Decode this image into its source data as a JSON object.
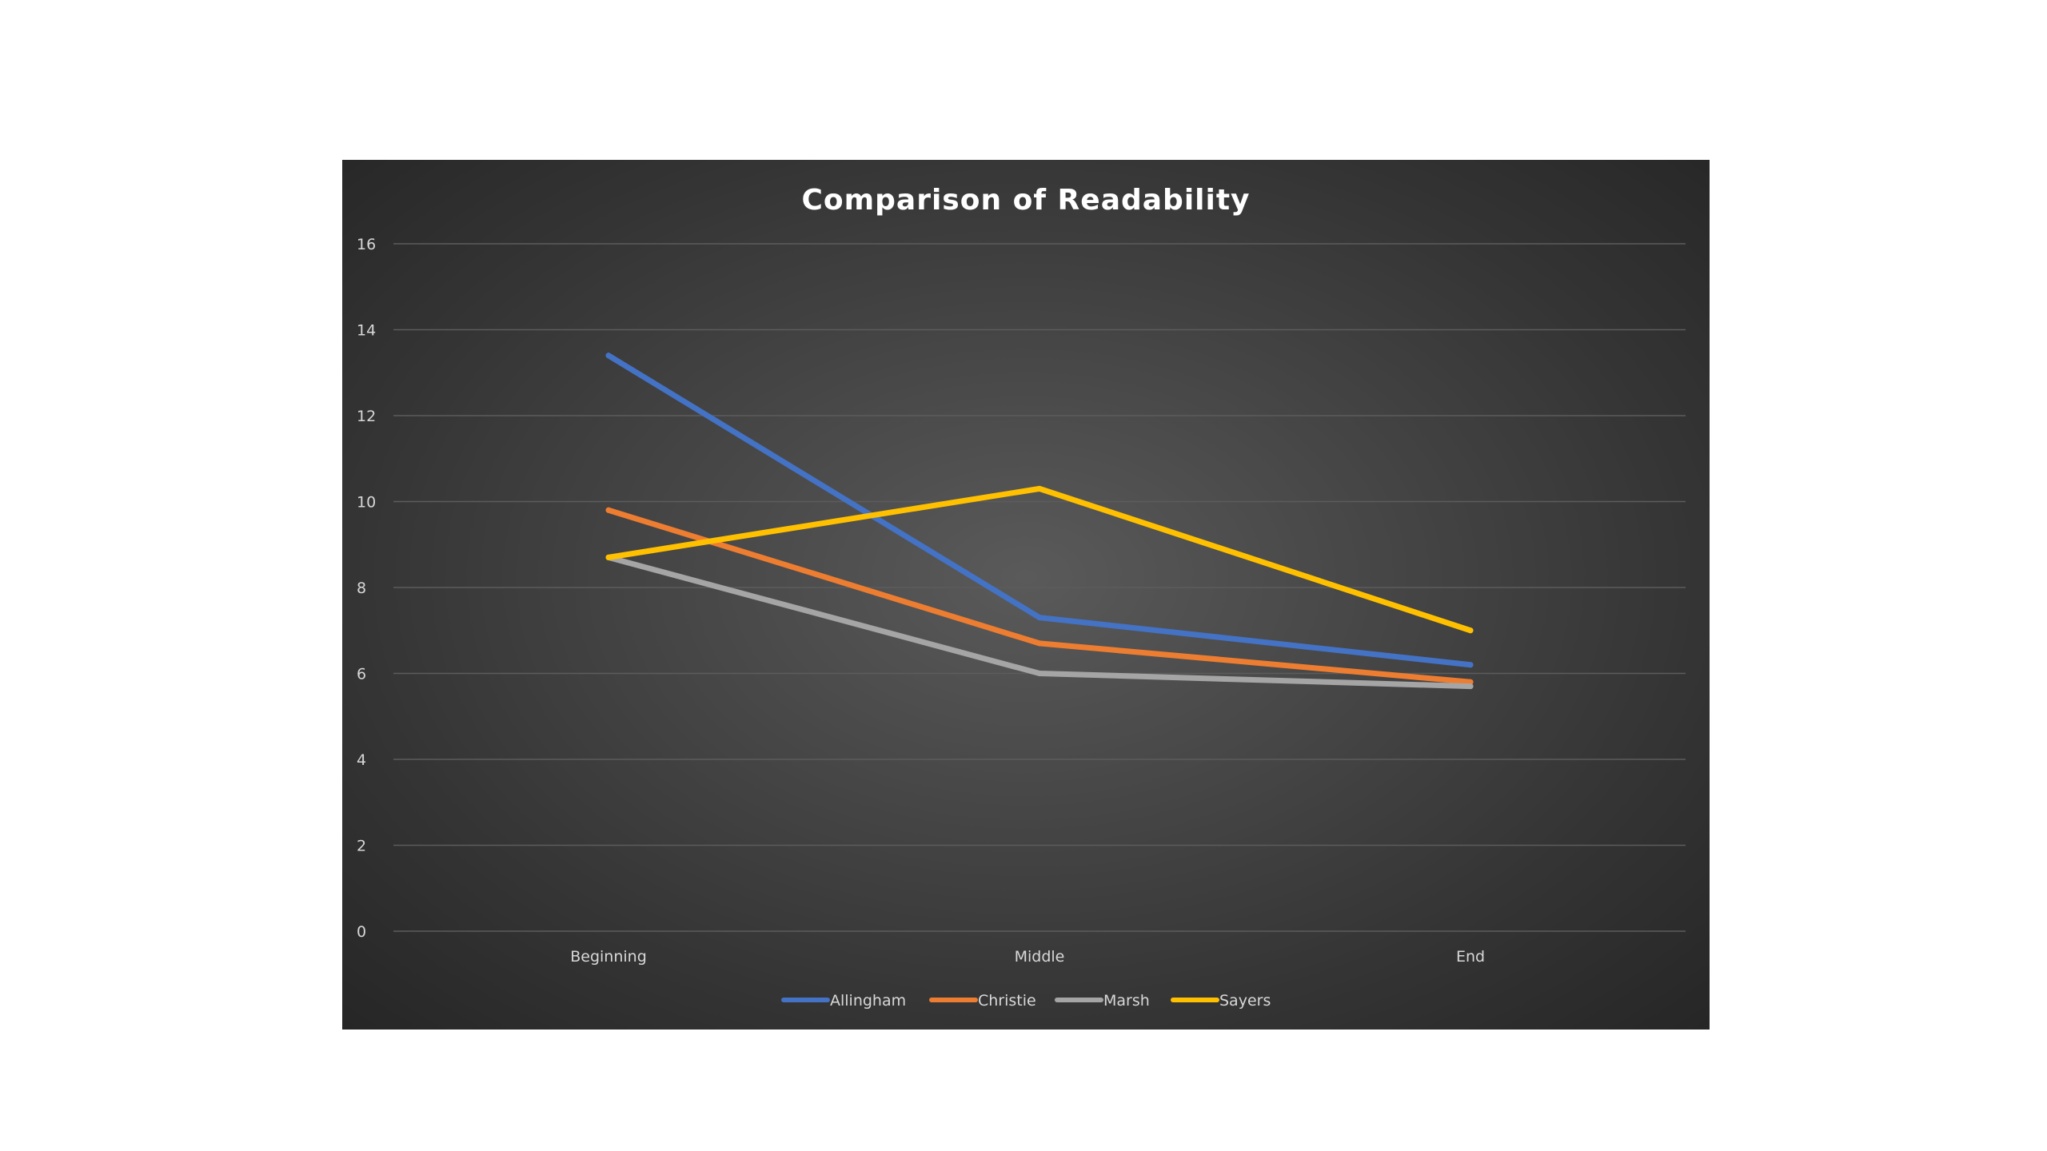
{
  "chart_data": {
    "type": "line",
    "title": "Comparison of Readability",
    "xlabel": "",
    "ylabel": "",
    "categories": [
      "Beginning",
      "Middle",
      "End"
    ],
    "ylim": [
      0,
      16
    ],
    "yticks": [
      "0",
      "2",
      "4",
      "6",
      "8",
      "10",
      "12",
      "14",
      "16"
    ],
    "grid": true,
    "legend_position": "bottom",
    "series": [
      {
        "name": "Allingham",
        "color": "#4472c4",
        "values": [
          13.4,
          7.3,
          6.2
        ]
      },
      {
        "name": "Christie",
        "color": "#ed7d31",
        "values": [
          9.8,
          6.7,
          5.8
        ]
      },
      {
        "name": "Marsh",
        "color": "#a5a5a5",
        "values": [
          8.7,
          6.0,
          5.7
        ]
      },
      {
        "name": "Sayers",
        "color": "#ffc000",
        "values": [
          8.7,
          10.3,
          7.0
        ]
      }
    ]
  }
}
